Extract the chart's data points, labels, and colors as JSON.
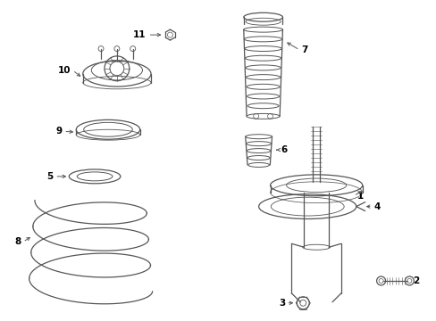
{
  "bg_color": "#ffffff",
  "line_color": "#555555",
  "label_color": "#000000",
  "figsize": [
    4.89,
    3.6
  ],
  "dpi": 100
}
